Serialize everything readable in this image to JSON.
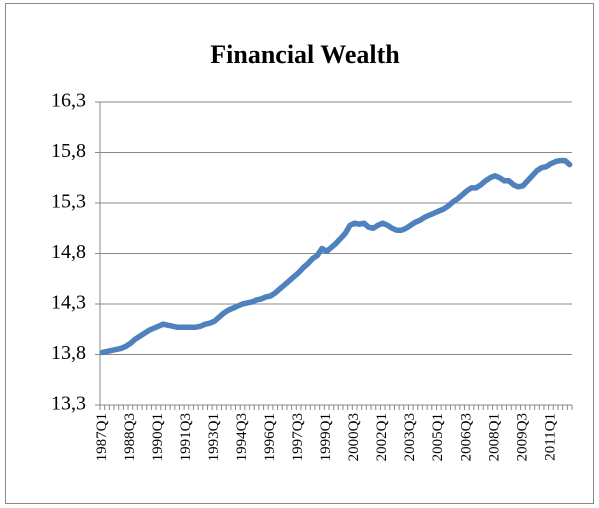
{
  "chart_data": {
    "type": "line",
    "title": "Financial Wealth",
    "categories": [
      "1987Q1",
      null,
      null,
      null,
      null,
      null,
      "1988Q3",
      null,
      null,
      null,
      null,
      null,
      "1990Q1",
      null,
      null,
      null,
      null,
      null,
      "1991Q3",
      null,
      null,
      null,
      null,
      null,
      "1993Q1",
      null,
      null,
      null,
      null,
      null,
      "1994Q3",
      null,
      null,
      null,
      null,
      null,
      "1996Q1",
      null,
      null,
      null,
      null,
      null,
      "1997Q3",
      null,
      null,
      null,
      null,
      null,
      "1999Q1",
      null,
      null,
      null,
      null,
      null,
      "2000Q3",
      null,
      null,
      null,
      null,
      null,
      "2002Q1",
      null,
      null,
      null,
      null,
      null,
      "2003Q3",
      null,
      null,
      null,
      null,
      null,
      "2005Q1",
      null,
      null,
      null,
      null,
      null,
      "2006Q3",
      null,
      null,
      null,
      null,
      null,
      "2008Q1",
      null,
      null,
      null,
      null,
      null,
      "2009Q3",
      null,
      null,
      null,
      null,
      null,
      "2011Q1",
      null,
      null,
      null,
      null
    ],
    "values": [
      13.82,
      13.83,
      13.84,
      13.85,
      13.86,
      13.88,
      13.91,
      13.95,
      13.98,
      14.01,
      14.04,
      14.06,
      14.08,
      14.1,
      14.09,
      14.08,
      14.07,
      14.07,
      14.07,
      14.07,
      14.07,
      14.08,
      14.1,
      14.11,
      14.13,
      14.17,
      14.21,
      14.24,
      14.26,
      14.28,
      14.3,
      14.31,
      14.32,
      14.34,
      14.35,
      14.37,
      14.38,
      14.41,
      14.45,
      14.49,
      14.53,
      14.57,
      14.61,
      14.66,
      14.7,
      14.75,
      14.78,
      14.85,
      14.82,
      14.86,
      14.9,
      14.95,
      15.0,
      15.08,
      15.1,
      15.09,
      15.1,
      15.06,
      15.05,
      15.08,
      15.1,
      15.08,
      15.05,
      15.03,
      15.03,
      15.05,
      15.08,
      15.11,
      15.13,
      15.16,
      15.18,
      15.2,
      15.22,
      15.24,
      15.27,
      15.31,
      15.34,
      15.38,
      15.42,
      15.45,
      15.45,
      15.48,
      15.52,
      15.55,
      15.57,
      15.55,
      15.52,
      15.52,
      15.48,
      15.46,
      15.47,
      15.52,
      15.57,
      15.62,
      15.65,
      15.66,
      15.69,
      15.71,
      15.72,
      15.72,
      15.68
    ],
    "color": "#4f81bd",
    "ylim": [
      13.3,
      16.3
    ],
    "yticks": [
      {
        "value": 13.3,
        "label": "13,3"
      },
      {
        "value": 13.8,
        "label": "13,8"
      },
      {
        "value": 14.3,
        "label": "14,3"
      },
      {
        "value": 14.8,
        "label": "14,8"
      },
      {
        "value": 15.3,
        "label": "15,3"
      },
      {
        "value": 15.8,
        "label": "15,8"
      },
      {
        "value": 16.3,
        "label": "16,3"
      }
    ],
    "grid": true
  }
}
